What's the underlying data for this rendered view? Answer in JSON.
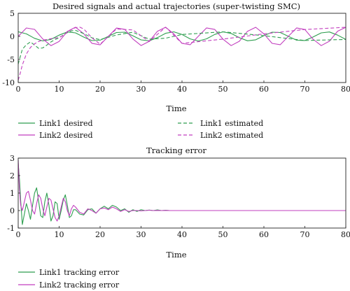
{
  "colors": {
    "green": "#2e9e4f",
    "magenta": "#c23fbf",
    "axis": "#222222"
  },
  "chart_data": [
    {
      "type": "line",
      "title": "Desired signals and actual trajectories (super-twisting SMC)",
      "xlabel": "Time",
      "ylabel": "",
      "xlim": [
        0,
        80
      ],
      "ylim": [
        -10,
        5
      ],
      "xticks": [
        "0",
        "10",
        "20",
        "30",
        "40",
        "50",
        "60",
        "70",
        "80"
      ],
      "yticks": [
        "5",
        "0",
        "-5",
        "-10"
      ],
      "grid": false,
      "legend_position": "below",
      "series": [
        {
          "name": "Link1 desired",
          "style": "solid",
          "color": "#2e9e4f",
          "x": [
            0,
            2,
            4,
            6,
            8,
            10,
            12,
            14,
            16,
            18,
            20,
            22,
            24,
            26,
            28,
            30,
            32,
            34,
            36,
            38,
            40,
            42,
            44,
            46,
            48,
            50,
            52,
            54,
            56,
            58,
            60,
            62,
            64,
            66,
            68,
            70,
            72,
            74,
            76,
            78,
            80
          ],
          "y": [
            1.0,
            0.54,
            -0.42,
            -0.99,
            -0.65,
            0.28,
            0.96,
            0.75,
            -0.15,
            -0.91,
            -0.84,
            0.0,
            0.84,
            0.91,
            0.14,
            -0.76,
            -0.96,
            -0.28,
            0.66,
            0.99,
            0.41,
            -0.55,
            -1.0,
            -0.53,
            0.42,
            0.99,
            0.64,
            -0.29,
            -0.96,
            -0.74,
            0.15,
            0.91,
            0.83,
            0.0,
            -0.84,
            -0.9,
            -0.13,
            0.76,
            0.96,
            0.27,
            -0.66
          ]
        },
        {
          "name": "Link2 desired",
          "style": "solid",
          "color": "#c23fbf",
          "x": [
            0,
            2,
            4,
            6,
            8,
            10,
            12,
            14,
            16,
            18,
            20,
            22,
            24,
            26,
            28,
            30,
            32,
            34,
            36,
            38,
            40,
            42,
            44,
            46,
            48,
            50,
            52,
            54,
            56,
            58,
            60,
            62,
            64,
            66,
            68,
            70,
            72,
            74,
            76,
            78,
            80
          ],
          "y": [
            0.0,
            1.82,
            1.51,
            -0.56,
            -2.0,
            -1.09,
            1.07,
            1.98,
            0.58,
            -1.5,
            -1.83,
            0.0,
            1.81,
            1.53,
            -0.56,
            -1.99,
            -1.08,
            1.1,
            1.98,
            0.55,
            -1.52,
            -1.81,
            0.03,
            1.83,
            1.5,
            -0.59,
            -2.0,
            -1.06,
            1.1,
            1.97,
            0.54,
            -1.52,
            -1.8,
            0.04,
            1.84,
            1.49,
            -0.6,
            -2.0,
            -1.04,
            1.12,
            1.97
          ]
        },
        {
          "name": "Link1 estimated",
          "style": "dashed",
          "color": "#2e9e4f",
          "x": [
            0,
            1,
            2,
            3,
            4,
            5,
            6,
            7,
            8,
            9,
            10,
            11,
            12,
            13,
            14,
            16,
            18,
            20,
            24,
            28,
            32,
            36,
            40,
            50,
            60,
            70,
            80
          ],
          "y": [
            -6.0,
            -2.8,
            -1.8,
            -1.2,
            -1.9,
            -2.6,
            -2.5,
            -1.9,
            -1.2,
            -0.7,
            -0.3,
            0.3,
            0.8,
            1.2,
            1.3,
            0.6,
            -0.3,
            -0.7,
            0.3,
            0.9,
            -0.6,
            -0.4,
            0.41,
            0.99,
            0.15,
            -0.9,
            -0.66
          ]
        },
        {
          "name": "Link2 estimated",
          "style": "dashed",
          "color": "#c23fbf",
          "x": [
            0,
            0.5,
            1,
            2,
            3,
            4,
            5,
            6,
            7,
            8,
            9,
            10,
            11,
            12,
            13,
            14,
            15,
            16,
            18,
            20,
            24,
            28,
            32,
            36,
            40,
            50,
            60,
            70,
            80
          ],
          "y": [
            -9.5,
            -8.0,
            -6.2,
            -3.8,
            -2.4,
            -1.6,
            -1.1,
            -0.8,
            -0.7,
            -0.5,
            -0.4,
            -0.2,
            0.2,
            0.9,
            1.5,
            1.9,
            2.0,
            1.6,
            -0.3,
            -1.7,
            1.6,
            1.4,
            -1.1,
            1.98,
            -1.52,
            -0.59,
            0.54,
            1.49,
            1.97
          ]
        }
      ]
    },
    {
      "type": "line",
      "title": "Tracking error",
      "xlabel": "Time",
      "ylabel": "",
      "xlim": [
        0,
        80
      ],
      "ylim": [
        -1,
        3
      ],
      "xticks": [
        "0",
        "10",
        "20",
        "30",
        "40",
        "50",
        "60",
        "70",
        "80"
      ],
      "yticks": [
        "3",
        "2",
        "1",
        "0",
        "-1"
      ],
      "grid": false,
      "legend_position": "below",
      "series": [
        {
          "name": "Link1 tracking error",
          "style": "solid",
          "color": "#2e9e4f",
          "x": [
            0,
            0.3,
            0.6,
            1,
            1.5,
            2,
            2.5,
            3,
            3.5,
            4,
            4.5,
            5,
            5.5,
            6,
            6.5,
            7,
            7.5,
            8,
            8.5,
            9,
            9.5,
            10,
            10.5,
            11,
            11.5,
            12,
            12.5,
            13,
            13.5,
            14,
            15,
            16,
            17,
            18,
            19,
            20,
            21,
            22,
            23,
            24,
            25,
            26,
            27,
            28,
            29,
            30,
            31,
            32,
            33,
            34,
            35,
            36,
            37,
            38,
            40,
            50,
            60,
            70,
            80
          ],
          "y": [
            2.7,
            1.8,
            0.6,
            -0.8,
            -0.2,
            0.4,
            0.0,
            -0.5,
            0.3,
            1.0,
            1.3,
            0.5,
            -0.3,
            -0.4,
            0.5,
            1.0,
            0.3,
            -0.6,
            -0.3,
            0.5,
            0.4,
            -0.5,
            0.0,
            0.6,
            0.9,
            0.3,
            -0.4,
            -0.3,
            0.05,
            0.05,
            -0.2,
            -0.25,
            0.05,
            0.1,
            -0.15,
            0.1,
            0.25,
            0.1,
            0.3,
            0.2,
            0.0,
            0.1,
            -0.1,
            0.05,
            -0.05,
            0.05,
            0.0,
            0.03,
            0.0,
            0.04,
            0.0,
            0.02,
            0.0,
            0.0,
            0.0,
            0.0,
            0.0,
            0.0,
            0.0
          ]
        },
        {
          "name": "Link2 tracking error",
          "style": "solid",
          "color": "#c23fbf",
          "x": [
            0,
            0.3,
            0.6,
            1,
            1.5,
            2,
            2.5,
            3,
            3.5,
            4,
            4.5,
            5,
            5.5,
            6,
            6.5,
            7,
            7.5,
            8,
            8.5,
            9,
            9.5,
            10,
            10.5,
            11,
            11.5,
            12,
            12.5,
            13,
            13.5,
            14,
            15,
            16,
            17,
            18,
            19,
            20,
            21,
            22,
            23,
            24,
            25,
            26,
            27,
            28,
            29,
            30,
            31,
            32,
            33,
            34,
            35,
            36,
            37,
            38,
            40,
            50,
            60,
            70,
            80
          ],
          "y": [
            2.9,
            1.2,
            0.3,
            0.0,
            0.5,
            1.0,
            1.1,
            0.6,
            0.0,
            -0.2,
            0.4,
            0.9,
            0.7,
            0.1,
            -0.3,
            0.2,
            0.7,
            0.6,
            0.1,
            -0.4,
            -0.6,
            -0.3,
            0.2,
            0.7,
            0.5,
            0.0,
            -0.3,
            0.1,
            0.3,
            0.2,
            -0.1,
            -0.2,
            0.1,
            0.0,
            -0.15,
            0.1,
            0.15,
            0.05,
            0.2,
            0.1,
            -0.05,
            0.05,
            -0.05,
            0.0,
            0.0,
            -0.02,
            0.0,
            0.02,
            0.0,
            0.01,
            0.0,
            0.01,
            0.0,
            0.0,
            0.0,
            0.0,
            0.0,
            0.0,
            0.0
          ]
        }
      ]
    }
  ]
}
